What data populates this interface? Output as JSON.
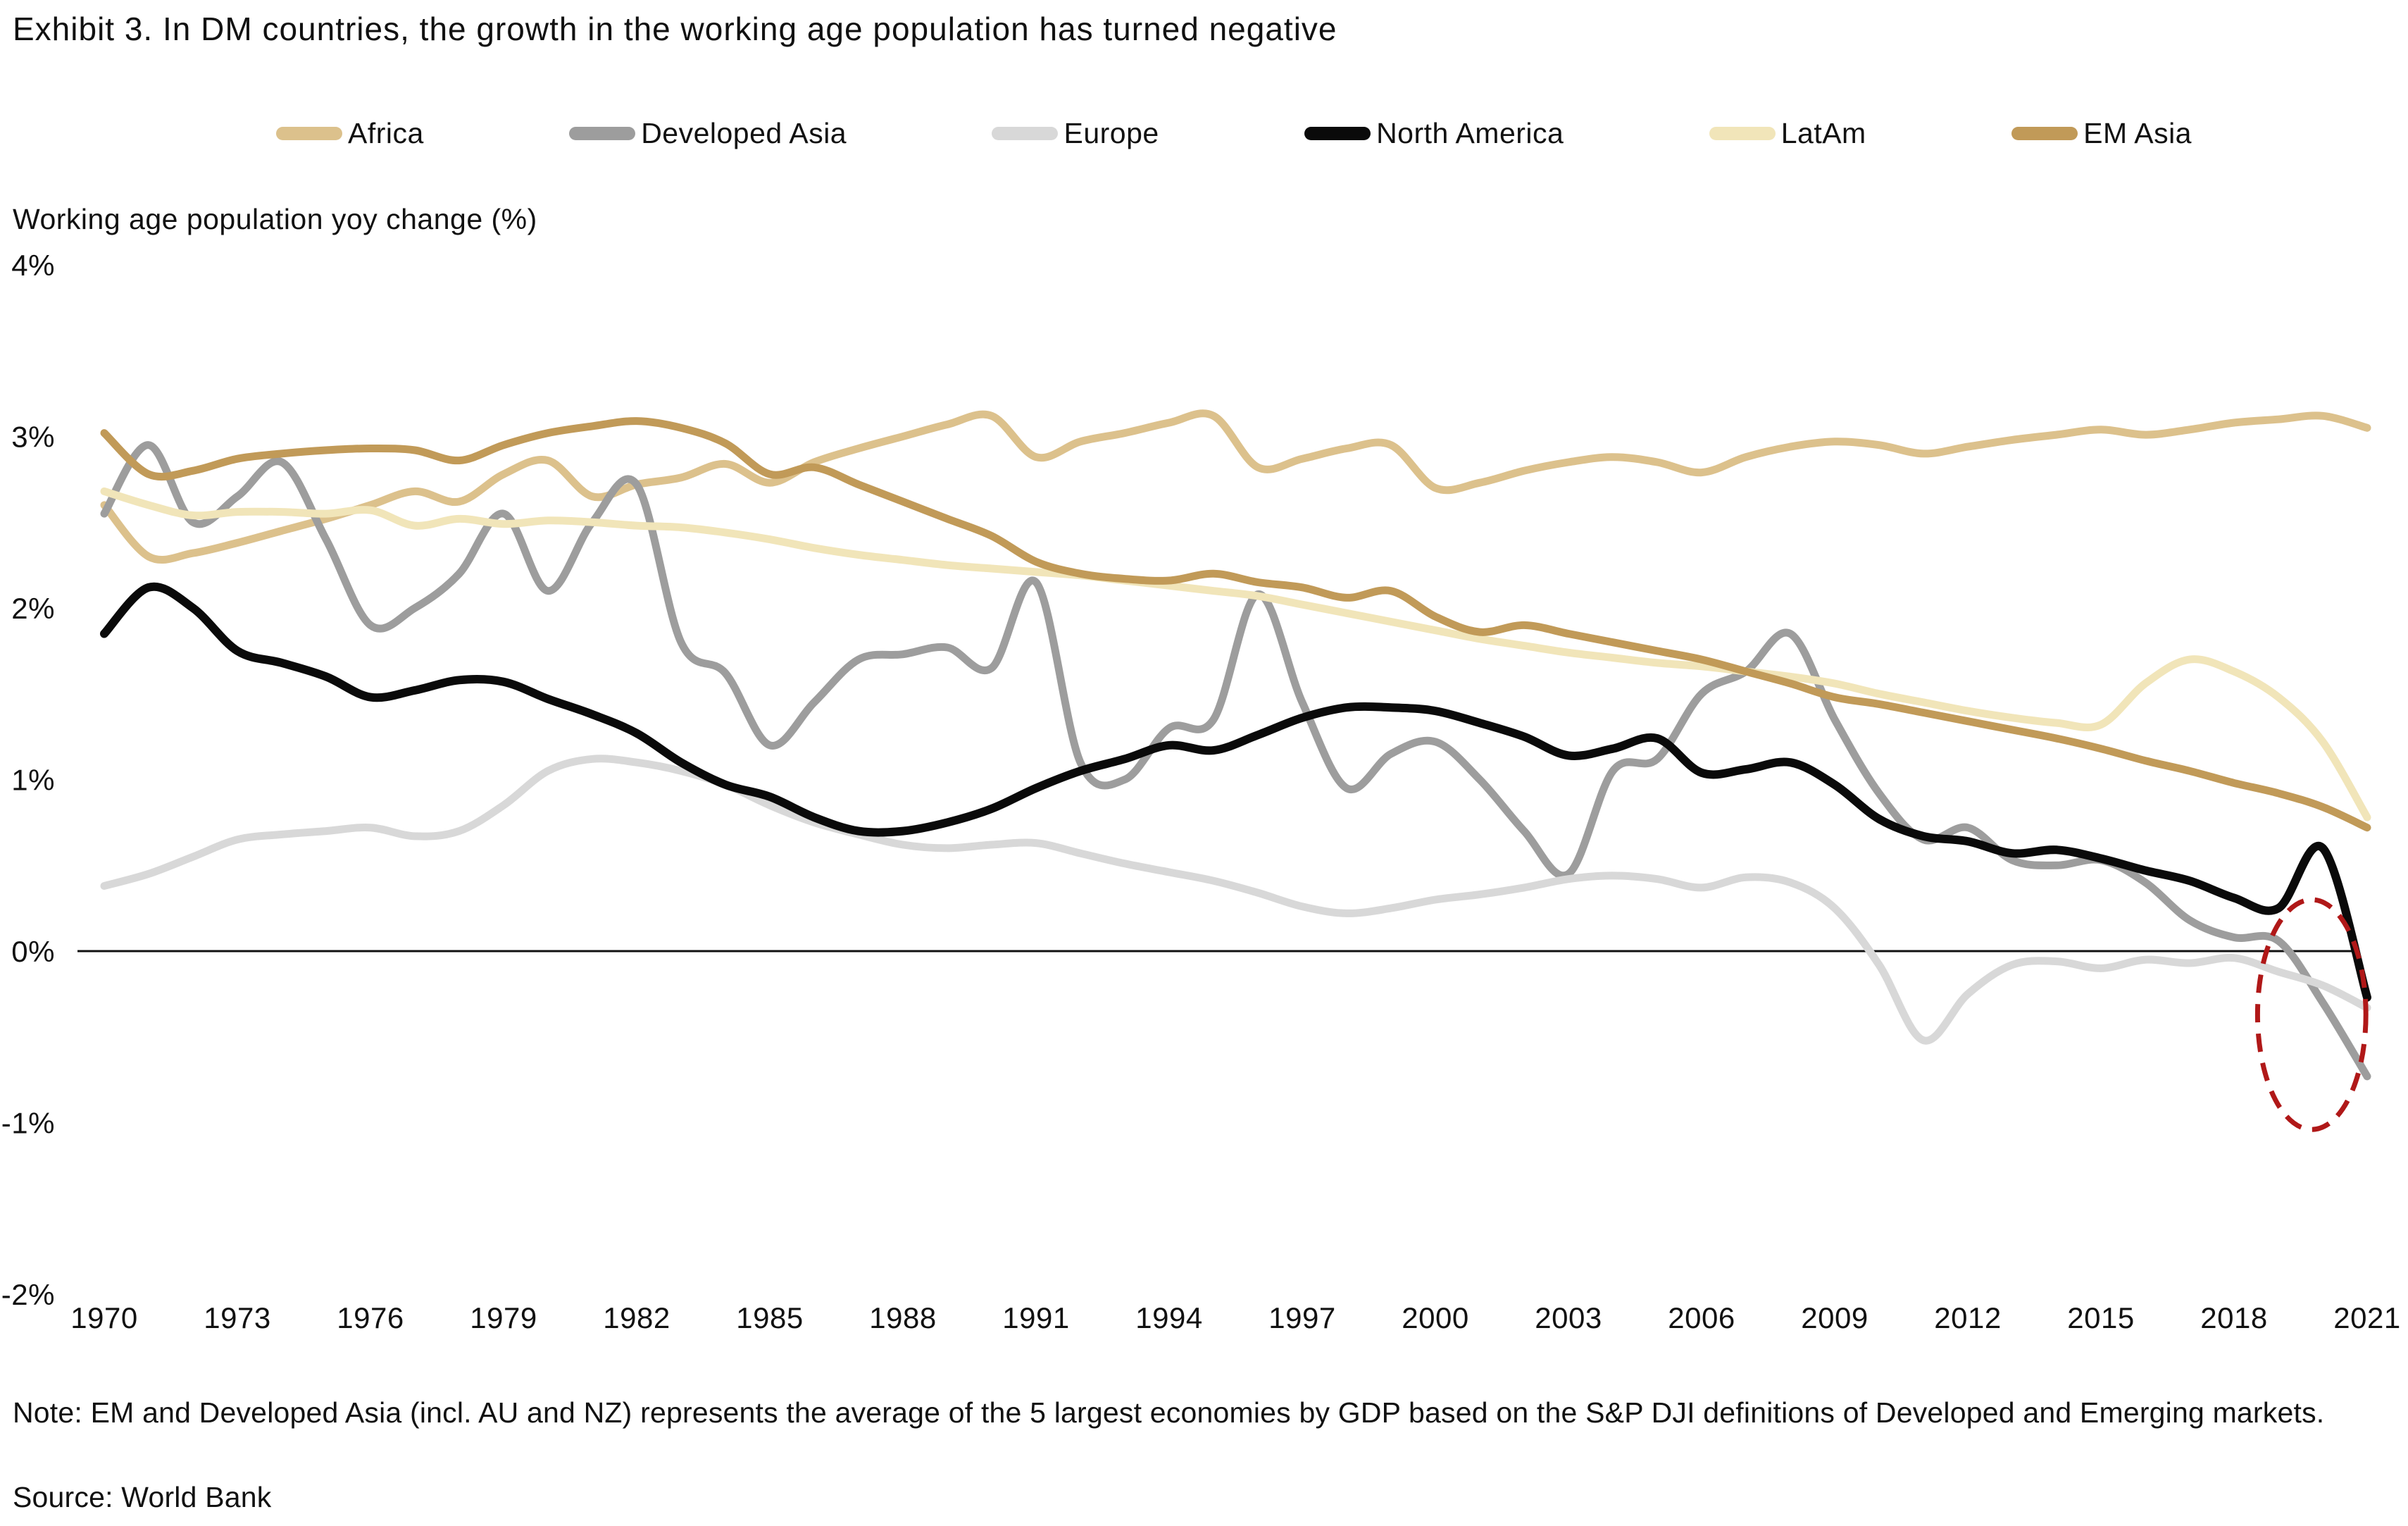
{
  "title": "Exhibit 3. In DM countries, the growth in the working age population has turned negative",
  "axis_title": "Working age population yoy change (%)",
  "note": "Note: EM and Developed Asia (incl. AU and NZ) represents the average of the 5 largest economies by GDP based on the S&P DJI definitions of Developed and Emerging markets.",
  "source": "Source: World Bank",
  "chart_data": {
    "type": "line",
    "title": "Exhibit 3. In DM countries, the growth in the working age population has turned negative",
    "xlabel": "",
    "ylabel": "Working age population yoy change (%)",
    "ylim": [
      -2,
      4
    ],
    "xlim": [
      1970,
      2021
    ],
    "grid": "zero-line-only",
    "legend_position": "top",
    "x": [
      1970,
      1971,
      1972,
      1973,
      1974,
      1975,
      1976,
      1977,
      1978,
      1979,
      1980,
      1981,
      1982,
      1983,
      1984,
      1985,
      1986,
      1987,
      1988,
      1989,
      1990,
      1991,
      1992,
      1993,
      1994,
      1995,
      1996,
      1997,
      1998,
      1999,
      2000,
      2001,
      2002,
      2003,
      2004,
      2005,
      2006,
      2007,
      2008,
      2009,
      2010,
      2011,
      2012,
      2013,
      2014,
      2015,
      2016,
      2017,
      2018,
      2019,
      2020,
      2021
    ],
    "x_tick_labels": [
      "1970",
      "1973",
      "1976",
      "1979",
      "1982",
      "1985",
      "1988",
      "1991",
      "1994",
      "1997",
      "2000",
      "2003",
      "2006",
      "2009",
      "2012",
      "2015",
      "2018",
      "2021"
    ],
    "y_ticks": [
      {
        "value": 4,
        "label": "4%"
      },
      {
        "value": 3,
        "label": "3%"
      },
      {
        "value": 2,
        "label": "2%"
      },
      {
        "value": 1,
        "label": "1%"
      },
      {
        "value": 0,
        "label": "0%"
      },
      {
        "value": -1,
        "label": "-1%"
      },
      {
        "value": -2,
        "label": "-2%"
      }
    ],
    "series": [
      {
        "name": "Africa",
        "color": "#DCC18C",
        "values": [
          2.6,
          2.3,
          2.32,
          2.38,
          2.45,
          2.52,
          2.6,
          2.68,
          2.62,
          2.78,
          2.86,
          2.65,
          2.72,
          2.76,
          2.84,
          2.73,
          2.85,
          2.93,
          3.0,
          3.07,
          3.12,
          2.88,
          2.97,
          3.02,
          3.08,
          3.12,
          2.82,
          2.87,
          2.93,
          2.95,
          2.7,
          2.73,
          2.8,
          2.85,
          2.88,
          2.85,
          2.79,
          2.88,
          2.94,
          2.97,
          2.95,
          2.9,
          2.94,
          2.98,
          3.01,
          3.04,
          3.01,
          3.04,
          3.08,
          3.1,
          3.12,
          3.05
        ]
      },
      {
        "name": "Developed Asia",
        "color": "#9D9D9D",
        "values": [
          2.55,
          2.95,
          2.5,
          2.65,
          2.85,
          2.4,
          1.9,
          2.0,
          2.2,
          2.55,
          2.1,
          2.5,
          2.72,
          1.8,
          1.62,
          1.2,
          1.45,
          1.7,
          1.73,
          1.77,
          1.65,
          2.15,
          1.1,
          1.0,
          1.3,
          1.35,
          2.08,
          1.45,
          0.95,
          1.15,
          1.22,
          1.0,
          0.7,
          0.45,
          1.05,
          1.12,
          1.5,
          1.63,
          1.85,
          1.35,
          0.92,
          0.65,
          0.72,
          0.53,
          0.5,
          0.53,
          0.4,
          0.18,
          0.08,
          0.06,
          -0.3,
          -0.73
        ]
      },
      {
        "name": "Europe",
        "color": "#D8D8D8",
        "values": [
          0.38,
          0.45,
          0.55,
          0.65,
          0.68,
          0.7,
          0.72,
          0.67,
          0.7,
          0.85,
          1.05,
          1.12,
          1.1,
          1.05,
          0.97,
          0.85,
          0.75,
          0.68,
          0.62,
          0.6,
          0.62,
          0.63,
          0.57,
          0.51,
          0.46,
          0.41,
          0.34,
          0.26,
          0.22,
          0.25,
          0.3,
          0.33,
          0.37,
          0.42,
          0.44,
          0.42,
          0.37,
          0.43,
          0.4,
          0.25,
          -0.08,
          -0.52,
          -0.25,
          -0.08,
          -0.06,
          -0.1,
          -0.05,
          -0.07,
          -0.04,
          -0.12,
          -0.2,
          -0.33
        ]
      },
      {
        "name": "North America",
        "color": "#0A0A0A",
        "values": [
          1.85,
          2.12,
          2.0,
          1.75,
          1.68,
          1.6,
          1.48,
          1.52,
          1.58,
          1.57,
          1.47,
          1.38,
          1.27,
          1.1,
          0.97,
          0.9,
          0.78,
          0.7,
          0.7,
          0.75,
          0.83,
          0.95,
          1.05,
          1.12,
          1.2,
          1.17,
          1.26,
          1.36,
          1.42,
          1.42,
          1.4,
          1.33,
          1.25,
          1.14,
          1.18,
          1.24,
          1.04,
          1.06,
          1.1,
          0.97,
          0.77,
          0.67,
          0.64,
          0.57,
          0.59,
          0.54,
          0.47,
          0.41,
          0.31,
          0.25,
          0.6,
          -0.27
        ]
      },
      {
        "name": "LatAm",
        "color": "#F1E5B9",
        "values": [
          2.68,
          2.6,
          2.54,
          2.56,
          2.56,
          2.55,
          2.57,
          2.48,
          2.52,
          2.49,
          2.51,
          2.5,
          2.48,
          2.47,
          2.44,
          2.4,
          2.35,
          2.31,
          2.28,
          2.25,
          2.23,
          2.21,
          2.19,
          2.16,
          2.13,
          2.1,
          2.07,
          2.02,
          1.97,
          1.92,
          1.87,
          1.82,
          1.78,
          1.74,
          1.71,
          1.68,
          1.66,
          1.63,
          1.6,
          1.56,
          1.5,
          1.45,
          1.4,
          1.36,
          1.33,
          1.32,
          1.56,
          1.7,
          1.63,
          1.48,
          1.22,
          0.78
        ]
      },
      {
        "name": "EM Asia",
        "color": "#C19A58",
        "values": [
          3.02,
          2.78,
          2.8,
          2.87,
          2.9,
          2.92,
          2.93,
          2.92,
          2.86,
          2.95,
          3.02,
          3.06,
          3.09,
          3.05,
          2.96,
          2.78,
          2.82,
          2.72,
          2.62,
          2.52,
          2.42,
          2.27,
          2.2,
          2.17,
          2.16,
          2.2,
          2.15,
          2.12,
          2.06,
          2.1,
          1.95,
          1.86,
          1.9,
          1.85,
          1.8,
          1.75,
          1.7,
          1.63,
          1.56,
          1.48,
          1.44,
          1.39,
          1.34,
          1.29,
          1.24,
          1.18,
          1.11,
          1.05,
          0.98,
          0.92,
          0.84,
          0.72
        ]
      }
    ],
    "annotation": {
      "type": "dashed-ellipse",
      "color": "#B01818",
      "center_year": 2019.75,
      "center_value": -0.37,
      "radius_years": 1.22,
      "radius_value": 0.67
    }
  }
}
